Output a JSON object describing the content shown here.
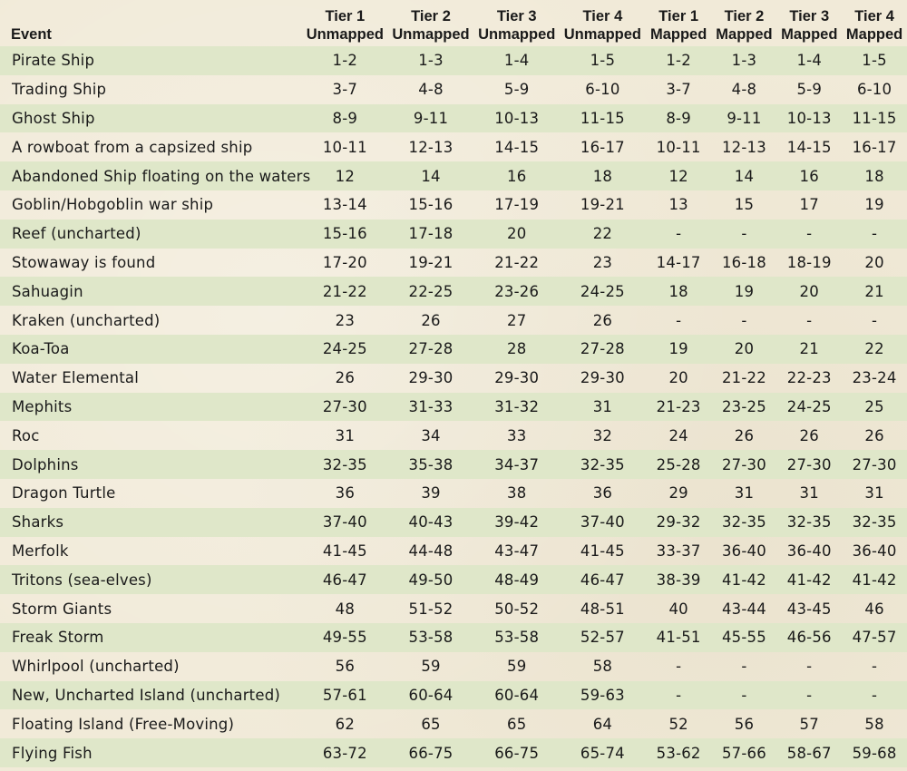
{
  "table": {
    "headers": [
      {
        "l1": "",
        "l2": "Event"
      },
      {
        "l1": "Tier 1",
        "l2": "Unmapped"
      },
      {
        "l1": "Tier 2",
        "l2": "Unmapped"
      },
      {
        "l1": "Tier 3",
        "l2": "Unmapped"
      },
      {
        "l1": "Tier 4",
        "l2": "Unmapped"
      },
      {
        "l1": "Tier 1",
        "l2": "Mapped"
      },
      {
        "l1": "Tier 2",
        "l2": "Mapped"
      },
      {
        "l1": "Tier 3",
        "l2": "Mapped"
      },
      {
        "l1": "Tier 4",
        "l2": "Mapped"
      }
    ],
    "rows": [
      [
        "Pirate Ship",
        "1-2",
        "1-3",
        "1-4",
        "1-5",
        "1-2",
        "1-3",
        "1-4",
        "1-5"
      ],
      [
        "Trading Ship",
        "3-7",
        "4-8",
        "5-9",
        "6-10",
        "3-7",
        "4-8",
        "5-9",
        "6-10"
      ],
      [
        "Ghost Ship",
        "8-9",
        "9-11",
        "10-13",
        "11-15",
        "8-9",
        "9-11",
        "10-13",
        "11-15"
      ],
      [
        "A rowboat from a capsized ship",
        "10-11",
        "12-13",
        "14-15",
        "16-17",
        "10-11",
        "12-13",
        "14-15",
        "16-17"
      ],
      [
        "Abandoned Ship floating on the waters",
        "12",
        "14",
        "16",
        "18",
        "12",
        "14",
        "16",
        "18"
      ],
      [
        "Goblin/Hobgoblin war ship",
        "13-14",
        "15-16",
        "17-19",
        "19-21",
        "13",
        "15",
        "17",
        "19"
      ],
      [
        "Reef (uncharted)",
        "15-16",
        "17-18",
        "20",
        "22",
        "-",
        "-",
        "-",
        "-"
      ],
      [
        "Stowaway is found",
        "17-20",
        "19-21",
        "21-22",
        "23",
        "14-17",
        "16-18",
        "18-19",
        "20"
      ],
      [
        "Sahuagin",
        "21-22",
        "22-25",
        "23-26",
        "24-25",
        "18",
        "19",
        "20",
        "21"
      ],
      [
        "Kraken (uncharted)",
        "23",
        "26",
        "27",
        "26",
        "-",
        "-",
        "-",
        "-"
      ],
      [
        "Koa-Toa",
        "24-25",
        "27-28",
        "28",
        "27-28",
        "19",
        "20",
        "21",
        "22"
      ],
      [
        "Water Elemental",
        "26",
        "29-30",
        "29-30",
        "29-30",
        "20",
        "21-22",
        "22-23",
        "23-24"
      ],
      [
        "Mephits",
        "27-30",
        "31-33",
        "31-32",
        "31",
        "21-23",
        "23-25",
        "24-25",
        "25"
      ],
      [
        "Roc",
        "31",
        "34",
        "33",
        "32",
        "24",
        "26",
        "26",
        "26"
      ],
      [
        "Dolphins",
        "32-35",
        "35-38",
        "34-37",
        "32-35",
        "25-28",
        "27-30",
        "27-30",
        "27-30"
      ],
      [
        "Dragon Turtle",
        "36",
        "39",
        "38",
        "36",
        "29",
        "31",
        "31",
        "31"
      ],
      [
        "Sharks",
        "37-40",
        "40-43",
        "39-42",
        "37-40",
        "29-32",
        "32-35",
        "32-35",
        "32-35"
      ],
      [
        "Merfolk",
        "41-45",
        "44-48",
        "43-47",
        "41-45",
        "33-37",
        "36-40",
        "36-40",
        "36-40"
      ],
      [
        "Tritons (sea-elves)",
        "46-47",
        "49-50",
        "48-49",
        "46-47",
        "38-39",
        "41-42",
        "41-42",
        "41-42"
      ],
      [
        "Storm Giants",
        "48",
        "51-52",
        "50-52",
        "48-51",
        "40",
        "43-44",
        "43-45",
        "46"
      ],
      [
        "Freak Storm",
        "49-55",
        "53-58",
        "53-58",
        "52-57",
        "41-51",
        "45-55",
        "46-56",
        "47-57"
      ],
      [
        "Whirlpool (uncharted)",
        "56",
        "59",
        "59",
        "58",
        "-",
        "-",
        "-",
        "-"
      ],
      [
        "New, Uncharted Island (uncharted)",
        "57-61",
        "60-64",
        "60-64",
        "59-63",
        "-",
        "-",
        "-",
        "-"
      ],
      [
        "Floating Island (Free-Moving)",
        "62",
        "65",
        "65",
        "64",
        "52",
        "56",
        "57",
        "58"
      ],
      [
        "Flying Fish",
        "63-72",
        "66-75",
        "66-75",
        "65-74",
        "53-62",
        "57-66",
        "58-67",
        "59-68"
      ]
    ]
  },
  "colors": {
    "band": "#dfe7c9",
    "background": "#f1ead8",
    "text": "#1a1a1a"
  }
}
